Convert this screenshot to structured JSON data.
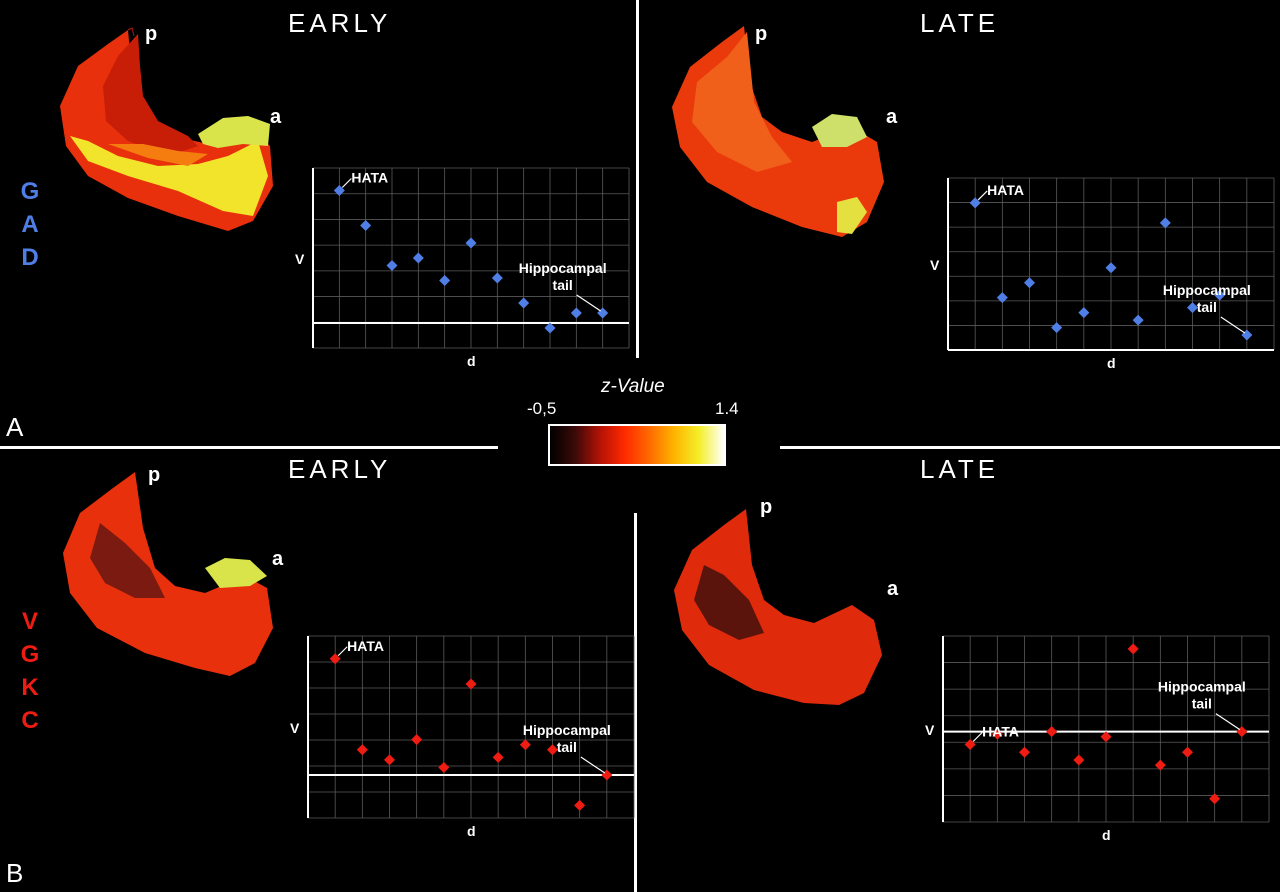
{
  "panels": {
    "A": {
      "label": "A",
      "vertical_letters": [
        "G",
        "A",
        "D"
      ]
    },
    "B": {
      "label": "B",
      "vertical_letters": [
        "V",
        "G",
        "K",
        "C"
      ]
    }
  },
  "period_titles": {
    "early": "EARLY",
    "late": "LATE"
  },
  "brain_labels": {
    "posterior": "p",
    "anterior": "a"
  },
  "colorbar": {
    "title": "z-Value",
    "min_label": "-0,5",
    "max_label": "1.4",
    "stops": [
      "#000000",
      "#3a0a08",
      "#b31206",
      "#ff2a00",
      "#ff6a00",
      "#ffb400",
      "#f4ef2a",
      "#ffffff"
    ]
  },
  "colors": {
    "gad": "#4f7fe6",
    "vgkc": "#ee1c12",
    "grid": "#5a5a5a",
    "axis": "#ffffff"
  },
  "chart_data": [
    {
      "id": "gad-early",
      "type": "scatter",
      "xlabel": "d",
      "ylabel": "V",
      "color": "#4f7fe6",
      "x": [
        1,
        2,
        3,
        4,
        5,
        6,
        7,
        8,
        9,
        10,
        11
      ],
      "y": [
        5.3,
        3.9,
        2.3,
        2.6,
        1.7,
        3.2,
        1.8,
        0.8,
        -0.2,
        0.4,
        0.4
      ],
      "xlim": [
        0,
        12
      ],
      "ylim": [
        -1,
        6.2
      ],
      "baseline": 0,
      "annotations": [
        {
          "text": "HATA",
          "point_index": 0
        },
        {
          "text": "Hippocampal",
          "text2": "tail",
          "point_index": 10
        }
      ]
    },
    {
      "id": "gad-late",
      "type": "scatter",
      "xlabel": "d",
      "ylabel": "V",
      "color": "#4f7fe6",
      "x": [
        1,
        2,
        3,
        4,
        5,
        6,
        7,
        8,
        9,
        10,
        11
      ],
      "y": [
        5.4,
        1.6,
        2.2,
        0.4,
        1.0,
        2.8,
        0.7,
        4.6,
        1.2,
        1.7,
        0.1
      ],
      "xlim": [
        0,
        12
      ],
      "ylim": [
        -0.5,
        6.4
      ],
      "baseline": -0.5,
      "annotations": [
        {
          "text": "HATA",
          "point_index": 0
        },
        {
          "text": "Hippocampal",
          "text2": "tail",
          "point_index": 10
        }
      ]
    },
    {
      "id": "vgkc-early",
      "type": "scatter",
      "xlabel": "d",
      "ylabel": "V",
      "color": "#ee1c12",
      "x": [
        1,
        2,
        3,
        4,
        5,
        6,
        7,
        8,
        9,
        10,
        11
      ],
      "y": [
        4.6,
        1.0,
        0.6,
        1.4,
        0.3,
        3.6,
        0.7,
        1.2,
        1.0,
        -1.2,
        0.0
      ],
      "xlim": [
        0,
        12
      ],
      "ylim": [
        -1.7,
        5.5
      ],
      "baseline": 0,
      "annotations": [
        {
          "text": "HATA",
          "point_index": 0
        },
        {
          "text": "Hippocampal",
          "text2": "tail",
          "point_index": 10
        }
      ]
    },
    {
      "id": "vgkc-late",
      "type": "scatter",
      "xlabel": "d",
      "ylabel": "V",
      "color": "#ee1c12",
      "x": [
        1,
        2,
        3,
        4,
        5,
        6,
        7,
        8,
        9,
        10,
        11
      ],
      "y": [
        -0.5,
        -0.1,
        -0.8,
        0.0,
        -1.1,
        -0.2,
        3.2,
        -1.3,
        -0.8,
        -2.6,
        0.0
      ],
      "xlim": [
        0,
        12
      ],
      "ylim": [
        -3.5,
        3.7
      ],
      "baseline": 0,
      "annotations": [
        {
          "text": "HATA",
          "point_index": 0
        },
        {
          "text": "Hippocampal",
          "text2": "tail",
          "point_index": 10
        }
      ]
    }
  ]
}
